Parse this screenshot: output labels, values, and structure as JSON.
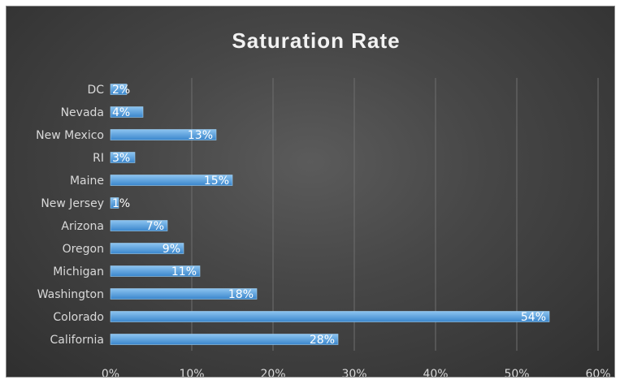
{
  "chart_data": {
    "type": "bar",
    "orientation": "horizontal",
    "title": "Saturation Rate",
    "categories": [
      "DC",
      "Nevada",
      "New Mexico",
      "RI",
      "Maine",
      "New Jersey",
      "Arizona",
      "Oregon",
      "Michigan",
      "Washington",
      "Colorado",
      "California"
    ],
    "values": [
      2,
      4,
      13,
      3,
      15,
      1,
      7,
      9,
      11,
      18,
      54,
      28
    ],
    "data_labels": [
      "2%",
      "4%",
      "13%",
      "3%",
      "15%",
      "1%",
      "7%",
      "9%",
      "11%",
      "18%",
      "54%",
      "28%"
    ],
    "xlim": [
      0,
      60
    ],
    "x_ticks": [
      0,
      10,
      20,
      30,
      40,
      50,
      60
    ],
    "x_tick_labels": [
      "0%",
      "10%",
      "20%",
      "30%",
      "40%",
      "50%",
      "60%"
    ],
    "xlabel": "",
    "ylabel": "",
    "grid": true,
    "legend": "none",
    "colors": {
      "bar_top": "#8cc4f0",
      "bar_bottom": "#3a86cc",
      "bar_edge": "#9fd0f5",
      "background": "#474747",
      "text": "#d9d9d9"
    }
  }
}
